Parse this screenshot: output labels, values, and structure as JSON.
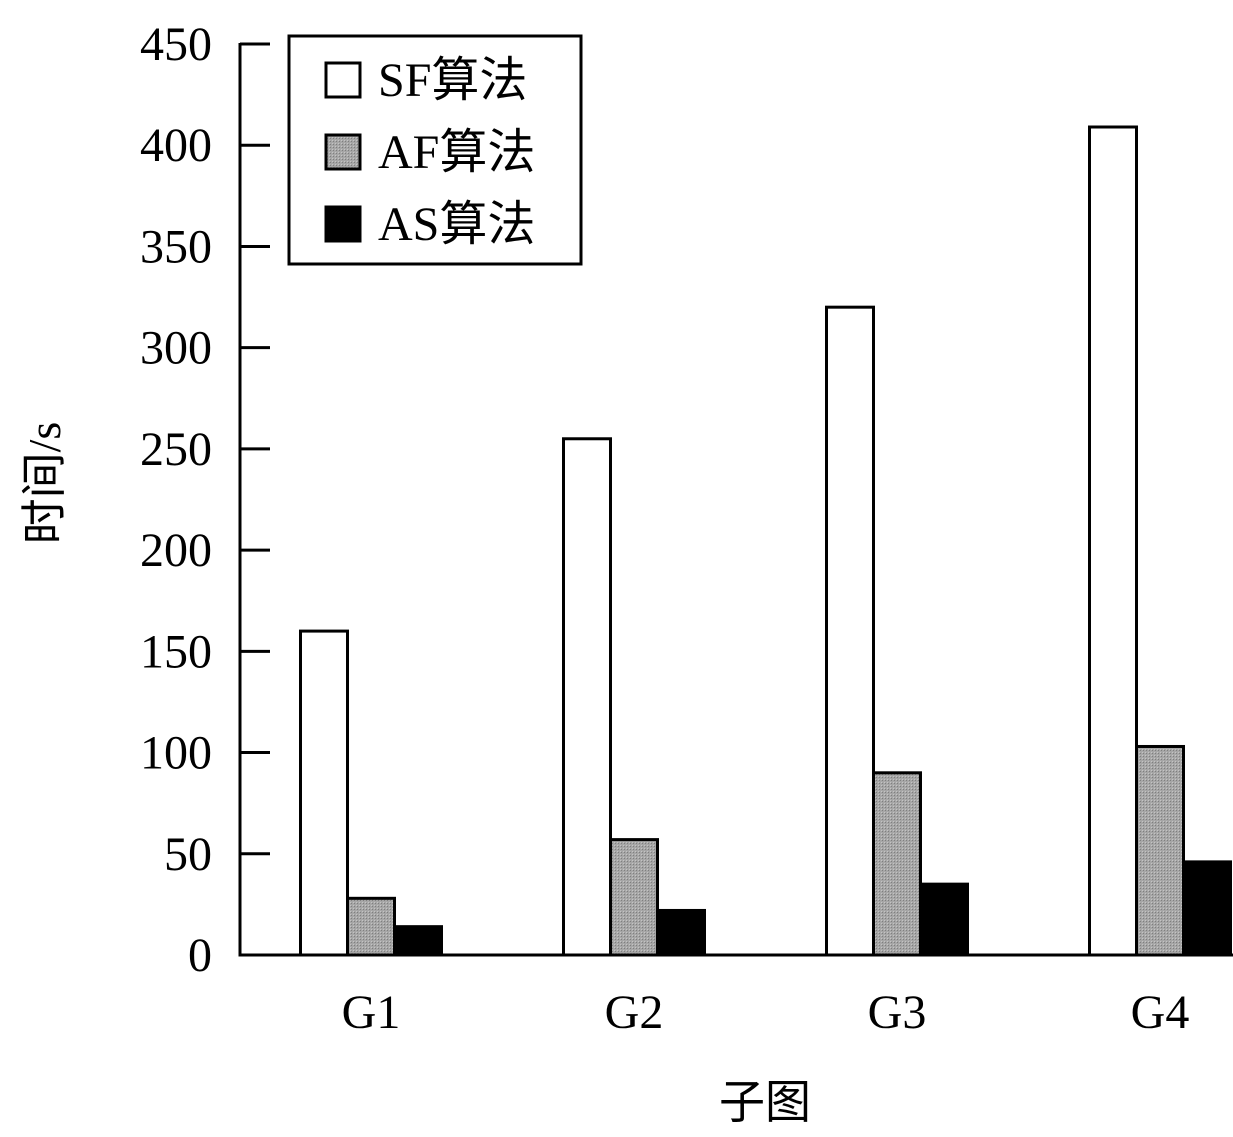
{
  "chart_data": {
    "type": "bar",
    "title": "",
    "xlabel": "子图",
    "ylabel": "时间/s",
    "categories": [
      "G1",
      "G2",
      "G3",
      "G4"
    ],
    "ylim": [
      0,
      450
    ],
    "yticks": [
      0,
      50,
      100,
      150,
      200,
      250,
      300,
      350,
      400,
      450
    ],
    "grid": false,
    "legend_position": "top-left",
    "series": [
      {
        "name": "SF算法",
        "values": [
          160,
          255,
          320,
          409
        ],
        "color": "#ffffff"
      },
      {
        "name": "AF算法",
        "values": [
          28,
          57,
          90,
          103
        ],
        "color": "#999999"
      },
      {
        "name": "AS算法",
        "values": [
          14,
          22,
          35,
          46
        ],
        "color": "#000000"
      }
    ]
  }
}
